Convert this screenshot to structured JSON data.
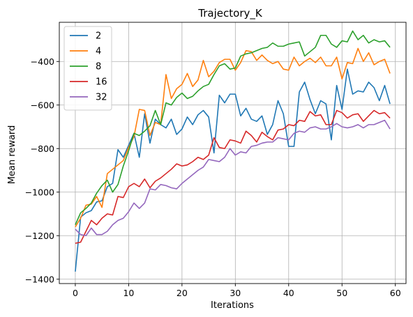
{
  "chart_data": {
    "type": "line",
    "title": "Trajectory_K",
    "xlabel": "Iterations",
    "ylabel": "Mean reward",
    "xlim": [
      -3,
      62
    ],
    "ylim": [
      -1420,
      -220
    ],
    "xticks": [
      0,
      10,
      20,
      30,
      40,
      50,
      60
    ],
    "yticks": [
      -1400,
      -1200,
      -1000,
      -800,
      -600,
      -400
    ],
    "xtick_labels": [
      "0",
      "10",
      "20",
      "30",
      "40",
      "50",
      "60"
    ],
    "ytick_labels": [
      "−1400",
      "−1200",
      "−1000",
      "−800",
      "−600",
      "−400"
    ],
    "grid": true,
    "legend": "upper-left",
    "x": [
      0,
      1,
      2,
      3,
      4,
      5,
      6,
      7,
      8,
      9,
      10,
      11,
      12,
      13,
      14,
      15,
      16,
      17,
      18,
      19,
      20,
      21,
      22,
      23,
      24,
      25,
      26,
      27,
      28,
      29,
      30,
      31,
      32,
      33,
      34,
      35,
      36,
      37,
      38,
      39,
      40,
      41,
      42,
      43,
      44,
      45,
      46,
      47,
      48,
      49,
      50,
      51,
      52,
      53,
      54,
      55,
      56,
      57,
      58,
      59
    ],
    "series": [
      {
        "name": "2",
        "color": "#1f77b4",
        "values": [
          -1365,
          -1115,
          -1095,
          -1085,
          -1045,
          -1040,
          -975,
          -960,
          -805,
          -840,
          -785,
          -730,
          -840,
          -640,
          -775,
          -665,
          -690,
          -705,
          -665,
          -735,
          -710,
          -655,
          -690,
          -645,
          -625,
          -655,
          -820,
          -555,
          -590,
          -550,
          -550,
          -650,
          -615,
          -665,
          -675,
          -650,
          -735,
          -690,
          -580,
          -640,
          -790,
          -790,
          -540,
          -495,
          -575,
          -640,
          -580,
          -595,
          -760,
          -510,
          -620,
          -435,
          -550,
          -535,
          -540,
          -495,
          -520,
          -580,
          -510,
          -595
        ]
      },
      {
        "name": "4",
        "color": "#ff7f0e",
        "values": [
          -1160,
          -1120,
          -1060,
          -1055,
          -1020,
          -1070,
          -915,
          -895,
          -875,
          -855,
          -795,
          -745,
          -620,
          -625,
          -740,
          -680,
          -690,
          -460,
          -570,
          -525,
          -505,
          -455,
          -515,
          -485,
          -395,
          -470,
          -445,
          -405,
          -390,
          -390,
          -440,
          -405,
          -350,
          -355,
          -395,
          -370,
          -395,
          -410,
          -400,
          -435,
          -440,
          -380,
          -420,
          -400,
          -385,
          -405,
          -380,
          -420,
          -420,
          -380,
          -480,
          -405,
          -410,
          -340,
          -400,
          -360,
          -415,
          -400,
          -390,
          -455
        ]
      },
      {
        "name": "8",
        "color": "#2ca02c",
        "values": [
          -1150,
          -1095,
          -1075,
          -1050,
          -1005,
          -970,
          -945,
          -1000,
          -965,
          -880,
          -810,
          -730,
          -740,
          -720,
          -695,
          -625,
          -690,
          -590,
          -600,
          -565,
          -545,
          -570,
          -560,
          -535,
          -515,
          -505,
          -460,
          -420,
          -410,
          -435,
          -430,
          -375,
          -365,
          -360,
          -350,
          -340,
          -335,
          -315,
          -330,
          -330,
          -320,
          -315,
          -310,
          -375,
          -355,
          -335,
          -280,
          -280,
          -320,
          -335,
          -305,
          -310,
          -260,
          -300,
          -280,
          -315,
          -300,
          -310,
          -305,
          -335
        ]
      },
      {
        "name": "16",
        "color": "#d62728",
        "values": [
          -1235,
          -1230,
          -1180,
          -1130,
          -1150,
          -1120,
          -1100,
          -1105,
          -1020,
          -1025,
          -975,
          -960,
          -975,
          -940,
          -980,
          -950,
          -935,
          -915,
          -895,
          -870,
          -880,
          -875,
          -860,
          -840,
          -850,
          -830,
          -750,
          -795,
          -800,
          -760,
          -765,
          -775,
          -720,
          -740,
          -770,
          -725,
          -745,
          -760,
          -715,
          -710,
          -690,
          -695,
          -670,
          -675,
          -630,
          -650,
          -645,
          -690,
          -690,
          -625,
          -635,
          -660,
          -645,
          -640,
          -675,
          -650,
          -625,
          -640,
          -635,
          -660
        ]
      },
      {
        "name": "32",
        "color": "#9467bd",
        "values": [
          -1170,
          -1195,
          -1200,
          -1165,
          -1195,
          -1195,
          -1180,
          -1150,
          -1130,
          -1120,
          -1090,
          -1050,
          -1075,
          -1050,
          -985,
          -990,
          -965,
          -970,
          -980,
          -985,
          -960,
          -940,
          -920,
          -900,
          -885,
          -850,
          -855,
          -860,
          -840,
          -800,
          -830,
          -815,
          -820,
          -790,
          -785,
          -775,
          -770,
          -770,
          -750,
          -755,
          -760,
          -730,
          -720,
          -725,
          -705,
          -700,
          -710,
          -710,
          -700,
          -685,
          -700,
          -705,
          -700,
          -690,
          -705,
          -690,
          -690,
          -680,
          -670,
          -710
        ]
      }
    ]
  }
}
